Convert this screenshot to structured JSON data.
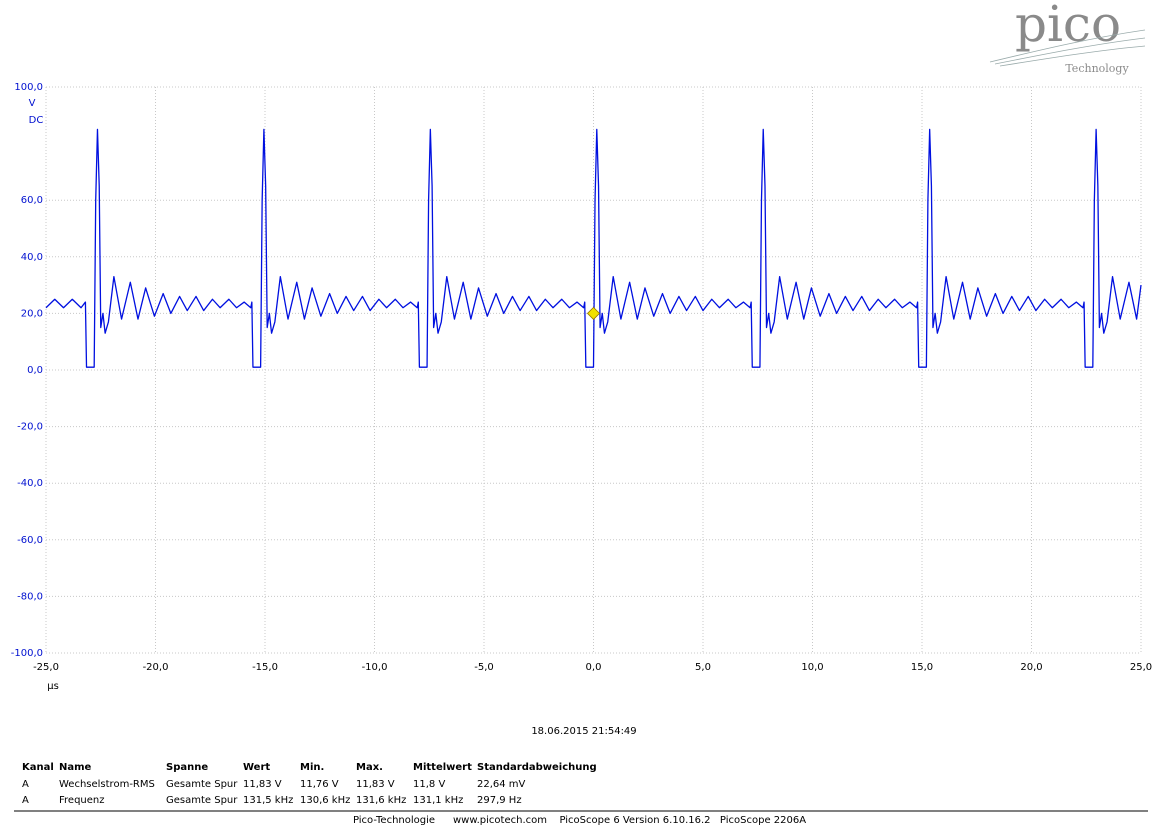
{
  "logo": {
    "name": "pico",
    "tagline": "Technology"
  },
  "chart_data": {
    "type": "line",
    "y_unit": "V",
    "coupling": "DC",
    "x_unit": "µs",
    "xlim": [
      -25,
      25
    ],
    "ylim": [
      -100,
      100
    ],
    "xticks": [
      {
        "value": -25,
        "label": "-25,0"
      },
      {
        "value": -20,
        "label": "-20,0"
      },
      {
        "value": -15,
        "label": "-15,0"
      },
      {
        "value": -10,
        "label": "-10,0"
      },
      {
        "value": -5,
        "label": "-5,0"
      },
      {
        "value": 0,
        "label": "0,0"
      },
      {
        "value": 5,
        "label": "5,0"
      },
      {
        "value": 10,
        "label": "10,0"
      },
      {
        "value": 15,
        "label": "15,0"
      },
      {
        "value": 20,
        "label": "20,0"
      },
      {
        "value": 25,
        "label": "25,0"
      }
    ],
    "yticks": [
      {
        "value": -100,
        "label": "-100,0"
      },
      {
        "value": -80,
        "label": "-80,0"
      },
      {
        "value": -60,
        "label": "-60,0"
      },
      {
        "value": -40,
        "label": "-40,0"
      },
      {
        "value": -20,
        "label": "-20,0"
      },
      {
        "value": 0,
        "label": "0,0"
      },
      {
        "value": 20,
        "label": "20,0"
      },
      {
        "value": 40,
        "label": "40,0"
      },
      {
        "value": 60,
        "label": "60,0"
      },
      {
        "value": 100,
        "label": "100,0"
      }
    ],
    "grid": true,
    "trigger": {
      "x": 0,
      "y": 20,
      "color": "#f0e000"
    },
    "x": [
      -25,
      -24.6,
      -24.2,
      -23.8,
      -23.4,
      -23.2,
      -23.15,
      -22.8,
      -22.73,
      -22.65,
      -22.57,
      -22.5,
      -22.4,
      -22.3,
      -22.15,
      -21.9,
      -21.55,
      -21.15,
      -20.8,
      -20.45,
      -20.05,
      -19.65,
      -19.3,
      -18.9,
      -18.55,
      -18.15,
      -17.8,
      -17.4,
      -17.05,
      -16.65,
      -16.3,
      -15.95,
      -15.65,
      -15.6,
      -15.55,
      -15.2,
      -15.13,
      -15.05,
      -14.97,
      -14.9,
      -14.8,
      -14.7,
      -14.55,
      -14.3,
      -13.95,
      -13.55,
      -13.2,
      -12.85,
      -12.45,
      -12.05,
      -11.7,
      -11.3,
      -10.95,
      -10.55,
      -10.2,
      -9.8,
      -9.45,
      -9.05,
      -8.7,
      -8.35,
      -8.05,
      -8.0,
      -7.95,
      -7.6,
      -7.53,
      -7.45,
      -7.37,
      -7.3,
      -7.2,
      -7.1,
      -6.95,
      -6.7,
      -6.35,
      -5.95,
      -5.6,
      -5.25,
      -4.85,
      -4.45,
      -4.1,
      -3.7,
      -3.35,
      -2.95,
      -2.6,
      -2.2,
      -1.85,
      -1.45,
      -1.1,
      -0.75,
      -0.45,
      -0.4,
      -0.35,
      0,
      0.07,
      0.15,
      0.23,
      0.3,
      0.4,
      0.5,
      0.65,
      0.9,
      1.25,
      1.65,
      2.0,
      2.35,
      2.75,
      3.15,
      3.5,
      3.9,
      4.25,
      4.65,
      5.0,
      5.4,
      5.75,
      6.15,
      6.5,
      6.85,
      7.15,
      7.2,
      7.25,
      7.6,
      7.67,
      7.75,
      7.83,
      7.9,
      8.0,
      8.1,
      8.25,
      8.5,
      8.85,
      9.25,
      9.6,
      9.95,
      10.35,
      10.75,
      11.1,
      11.5,
      11.85,
      12.25,
      12.6,
      13.0,
      13.35,
      13.75,
      14.1,
      14.45,
      14.75,
      14.8,
      14.85,
      15.2,
      15.27,
      15.35,
      15.43,
      15.5,
      15.6,
      15.7,
      15.85,
      16.1,
      16.45,
      16.85,
      17.2,
      17.55,
      17.95,
      18.35,
      18.7,
      19.1,
      19.45,
      19.85,
      20.2,
      20.6,
      20.95,
      21.35,
      21.7,
      22.05,
      22.35,
      22.4,
      22.45,
      22.8,
      22.87,
      22.95,
      23.03,
      23.1,
      23.2,
      23.3,
      23.45,
      23.7,
      24.05,
      24.45,
      24.8,
      25
    ],
    "series": [
      {
        "name": "A",
        "color": "#0010e0",
        "values": [
          22,
          25,
          22,
          25,
          22,
          24,
          1,
          1,
          60,
          85,
          65,
          15,
          20,
          13,
          17,
          33,
          18,
          31,
          18,
          29,
          19,
          27,
          20,
          26,
          21,
          26,
          21,
          25,
          22,
          25,
          22,
          24,
          22,
          24,
          1,
          1,
          60,
          85,
          65,
          15,
          20,
          13,
          17,
          33,
          18,
          31,
          18,
          29,
          19,
          27,
          20,
          26,
          21,
          26,
          21,
          25,
          22,
          25,
          22,
          24,
          22,
          24,
          1,
          1,
          60,
          85,
          65,
          15,
          20,
          13,
          17,
          33,
          18,
          31,
          18,
          29,
          19,
          27,
          20,
          26,
          21,
          26,
          21,
          25,
          22,
          25,
          22,
          24,
          22,
          24,
          1,
          1,
          60,
          85,
          65,
          15,
          20,
          13,
          17,
          33,
          18,
          31,
          18,
          29,
          19,
          27,
          20,
          26,
          21,
          26,
          21,
          25,
          22,
          25,
          22,
          24,
          22,
          24,
          1,
          1,
          60,
          85,
          65,
          15,
          20,
          13,
          17,
          33,
          18,
          31,
          18,
          29,
          19,
          27,
          20,
          26,
          21,
          26,
          21,
          25,
          22,
          25,
          22,
          24,
          22,
          24,
          1,
          1,
          60,
          85,
          65,
          15,
          20,
          13,
          17,
          33,
          18,
          31,
          18,
          29,
          19,
          27,
          20,
          26,
          21,
          26,
          21,
          25,
          22,
          25,
          22,
          24,
          22,
          24,
          1,
          1,
          60,
          85,
          65,
          15,
          20,
          13,
          17,
          33,
          18,
          31,
          18,
          30
        ]
      }
    ]
  },
  "timestamp": "18.06.2015 21:54:49",
  "table": {
    "header": [
      "Kanal",
      "Name",
      "Spanne",
      "Wert",
      "Min.",
      "Max.",
      "Mittelwert",
      "Standardabweichung"
    ],
    "rows": [
      [
        "A",
        "Wechselstrom-RMS",
        "Gesamte Spur",
        "11,83 V",
        "11,76 V",
        "11,83 V",
        "11,8 V",
        "22,64 mV"
      ],
      [
        "A",
        "Frequenz",
        "Gesamte Spur",
        "131,5 kHz",
        "130,6 kHz",
        "131,6 kHz",
        "131,1 kHz",
        "297,9 Hz"
      ]
    ]
  },
  "footer": [
    "Pico-Technologie",
    "www.picotech.com",
    "PicoScope 6 Version 6.10.16.2",
    "PicoScope 2206A"
  ]
}
